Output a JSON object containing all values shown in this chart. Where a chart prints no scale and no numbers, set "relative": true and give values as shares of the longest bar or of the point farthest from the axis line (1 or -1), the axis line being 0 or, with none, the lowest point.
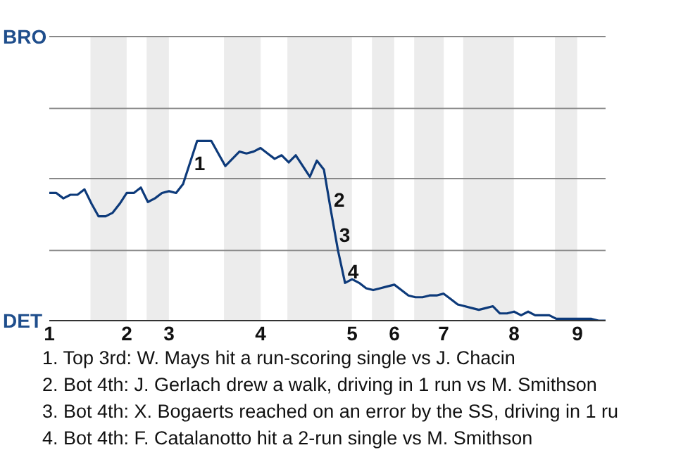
{
  "chart_data": {
    "type": "line",
    "relative": true,
    "categories": [
      "1",
      null,
      null,
      null,
      null,
      null,
      null,
      null,
      null,
      null,
      null,
      "2",
      null,
      null,
      null,
      null,
      null,
      "3",
      null,
      null,
      null,
      null,
      null,
      null,
      null,
      null,
      null,
      null,
      null,
      null,
      "4",
      null,
      null,
      null,
      null,
      null,
      null,
      null,
      null,
      null,
      null,
      null,
      null,
      "5",
      null,
      null,
      null,
      null,
      null,
      "6",
      null,
      null,
      null,
      null,
      null,
      null,
      "7",
      null,
      null,
      null,
      null,
      null,
      null,
      null,
      null,
      null,
      "8",
      null,
      null,
      null,
      null,
      null,
      null,
      null,
      null,
      "9",
      null,
      null,
      null,
      null
    ],
    "series": [
      {
        "color": "#0d3a7a",
        "values": [
          0.71,
          0.71,
          0.68,
          0.7,
          0.7,
          0.73,
          0.65,
          0.58,
          0.58,
          0.6,
          0.65,
          0.71,
          0.71,
          0.74,
          0.66,
          0.68,
          0.71,
          0.72,
          0.71,
          0.76,
          0.88,
          1,
          1,
          1,
          0.93,
          0.86,
          0.9,
          0.94,
          0.93,
          0.94,
          0.96,
          0.93,
          0.9,
          0.92,
          0.88,
          0.92,
          0.86,
          0.8,
          0.89,
          0.84,
          0.61,
          0.39,
          0.21,
          0.23,
          0.21,
          0.18,
          0.17,
          0.18,
          0.19,
          0.2,
          0.17,
          0.14,
          0.13,
          0.13,
          0.14,
          0.14,
          0.15,
          0.12,
          0.09,
          0.08,
          0.07,
          0.06,
          0.07,
          0.08,
          0.04,
          0.04,
          0.05,
          0.03,
          0.05,
          0.03,
          0.03,
          0.03,
          0.01,
          0.01,
          0.01,
          0.01,
          0.01,
          0.01,
          0,
          0
        ]
      }
    ],
    "ref_lines": [
      {
        "axis": "y",
        "value": 0.39,
        "color": "#888888"
      },
      {
        "axis": "y",
        "value": 0.79,
        "color": "#888888"
      },
      {
        "axis": "y",
        "value": 1.18,
        "color": "#888888"
      },
      {
        "axis": "y",
        "value": 1.58,
        "color": "#888888"
      }
    ],
    "annotations": [
      "BRO",
      "DET",
      "1",
      "2",
      "3",
      "4",
      "1. Top 3rd: W. Mays hit a run-scoring single vs J. Chacin",
      "2. Bot 4th: J. Gerlach drew a walk, driving in 1 run vs M. Smithson",
      "3. Bot 4th: X. Bogaerts reached on an error by the SS, driving in 1 ru",
      "4. Bot 4th: F. Catalanotto hit a 2-run single vs M. Smithson"
    ],
    "marker": "none",
    "line_style": "solid"
  }
}
